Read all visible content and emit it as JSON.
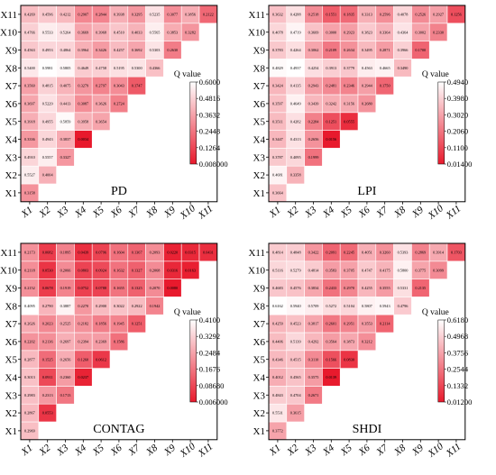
{
  "legend_title": "Q value",
  "axis_labels": [
    "X1",
    "X2",
    "X3",
    "X4",
    "X5",
    "X6",
    "X7",
    "X8",
    "X9",
    "X10",
    "X11"
  ],
  "colors": {
    "low": "#ffffff",
    "high": "#e8192c",
    "border": "#000000"
  },
  "chart_data": [
    {
      "type": "heatmap",
      "title": "PD",
      "layout": "lower-triangular",
      "vmin": 0.008,
      "vmax": 0.6,
      "colorbar_ticks": [
        "0.6000",
        "0.4816",
        "0.3632",
        "0.2448",
        "0.1264",
        "0.008000"
      ],
      "rows": [
        [
          "0.3158"
        ],
        [
          "0.5527",
          "0.4004"
        ],
        [
          "0.4910",
          "0.5557",
          "0.3327"
        ],
        [
          "0.3336",
          "0.4943",
          "0.3837",
          "0.0034"
        ],
        [
          "0.3918",
          "0.4955",
          "0.5859",
          "0.3958",
          "0.3654"
        ],
        [
          "0.3697",
          "0.5229",
          "0.4413",
          "0.3087",
          "0.3626",
          "0.2724"
        ],
        [
          "0.3560",
          "0.4815",
          "0.4075",
          "0.3279",
          "0.2797",
          "0.3043",
          "0.1747"
        ],
        [
          "0.5400",
          "0.5981",
          "0.5805",
          "0.4649",
          "0.4758",
          "0.5195",
          "0.5300",
          "0.4366"
        ],
        [
          "0.4563",
          "0.4953",
          "0.4864",
          "0.3964",
          "0.3426",
          "0.4257",
          "0.3692",
          "0.5303",
          "0.2630"
        ],
        [
          "0.4766",
          "0.5533",
          "0.5264",
          "0.3669",
          "0.3968",
          "0.4510",
          "0.4033",
          "0.5565",
          "0.3853",
          "0.3282"
        ],
        [
          "0.4269",
          "0.4596",
          "0.4212",
          "0.2907",
          "0.2844",
          "0.3938",
          "0.3295",
          "0.5235",
          "0.3077",
          "0.3856",
          "0.2122"
        ]
      ]
    },
    {
      "type": "heatmap",
      "title": "LPI",
      "layout": "lower-triangular",
      "vmin": 0.014,
      "vmax": 0.494,
      "colorbar_ticks": [
        "0.4940",
        "0.3980",
        "0.3020",
        "0.2060",
        "0.1100",
        "0.01400"
      ],
      "rows": [
        [
          "0.3664"
        ],
        [
          "0.4681",
          "0.3358"
        ],
        [
          "0.3787",
          "0.4095",
          "0.1999"
        ],
        [
          "0.3447",
          "0.4313",
          "0.2656",
          "0.0156"
        ],
        [
          "0.3511",
          "0.4282",
          "0.2284",
          "0.1251",
          "0.0555"
        ],
        [
          "0.3597",
          "0.4649",
          "0.3439",
          "0.3242",
          "0.3156",
          "0.2680"
        ],
        [
          "0.3424",
          "0.4135",
          "0.2943",
          "0.2481",
          "0.2346",
          "0.2944",
          "0.1750"
        ],
        [
          "0.4829",
          "0.4937",
          "0.4254",
          "0.3913",
          "0.3779",
          "0.4563",
          "0.4665",
          "0.3490"
        ],
        [
          "0.3783",
          "0.4264",
          "0.3062",
          "0.2109",
          "0.2634",
          "0.3495",
          "0.2871",
          "0.3966",
          "0.1700"
        ],
        [
          "0.4078",
          "0.4719",
          "0.3669",
          "0.3000",
          "0.2923",
          "0.3823",
          "0.3364",
          "0.4364",
          "0.3002",
          "0.2330"
        ],
        [
          "0.3632",
          "0.4288",
          "0.2518",
          "0.1551",
          "0.1835",
          "0.3313",
          "0.2596",
          "0.4078",
          "0.2526",
          "0.2927",
          "0.1256"
        ]
      ]
    },
    {
      "type": "heatmap",
      "title": "CONTAG",
      "layout": "lower-triangular",
      "vmin": 0.006,
      "vmax": 0.41,
      "colorbar_ticks": [
        "0.4100",
        "0.3292",
        "0.2484",
        "0.1676",
        "0.08680",
        "0.006000"
      ],
      "rows": [
        [
          "0.2969"
        ],
        [
          "0.2867",
          "0.0553"
        ],
        [
          "0.2983",
          "0.2313",
          "0.1713"
        ],
        [
          "0.3013",
          "0.0911",
          "0.2360",
          "0.0237"
        ],
        [
          "0.2877",
          "0.1525",
          "0.2656",
          "0.1260",
          "0.0612"
        ],
        [
          "0.2202",
          "0.2136",
          "0.2697",
          "0.2394",
          "0.2369",
          "0.1586"
        ],
        [
          "0.2626",
          "0.2023",
          "0.2525",
          "0.2182",
          "0.1856",
          "0.1945",
          "0.1251"
        ],
        [
          "0.4095",
          "0.2790",
          "0.3887",
          "0.2270",
          "0.2900",
          "0.3022",
          "0.2922",
          "0.1942"
        ],
        [
          "0.2152",
          "0.0678",
          "0.1919",
          "0.0752",
          "0.0788",
          "0.1655",
          "0.1325",
          "0.2070",
          "0.0080"
        ],
        [
          "0.2118",
          "0.0530",
          "0.2066",
          "0.0803",
          "0.0924",
          "0.1632",
          "0.1327",
          "0.2068",
          "0.0316",
          "0.0163"
        ],
        [
          "0.2173",
          "0.0682",
          "0.1895",
          "0.0439",
          "0.0796",
          "0.1604",
          "0.1367",
          "0.2093",
          "0.0220",
          "0.0315",
          "0.0431"
        ]
      ]
    },
    {
      "type": "heatmap",
      "title": "SHDI",
      "layout": "lower-triangular",
      "vmin": 0.012,
      "vmax": 0.618,
      "colorbar_ticks": [
        "0.6180",
        "0.4968",
        "0.3756",
        "0.2544",
        "0.1332",
        "0.01200"
      ],
      "rows": [
        [
          "0.3772"
        ],
        [
          "0.5531",
          "0.3615"
        ],
        [
          "0.4843",
          "0.4704",
          "0.2671"
        ],
        [
          "0.4012",
          "0.4565",
          "0.3575",
          "0.0139"
        ],
        [
          "0.4346",
          "0.4515",
          "0.3110",
          "0.1566",
          "0.0830"
        ],
        [
          "0.4406",
          "0.5139",
          "0.4292",
          "0.3564",
          "0.3873",
          "0.3212"
        ],
        [
          "0.4259",
          "0.4523",
          "0.3817",
          "0.2601",
          "0.2951",
          "0.3553",
          "0.2114"
        ],
        [
          "0.6162",
          "0.5940",
          "0.5709",
          "0.5272",
          "0.5104",
          "0.5807",
          "0.5943",
          "0.4796"
        ],
        [
          "0.4683",
          "0.4576",
          "0.3834",
          "0.2433",
          "0.2970",
          "0.4255",
          "0.3555",
          "0.5331",
          "0.2135"
        ],
        [
          "0.5116",
          "0.5279",
          "0.4814",
          "0.3583",
          "0.3705",
          "0.4747",
          "0.4175",
          "0.5800",
          "0.3775",
          "0.3099"
        ],
        [
          "0.4814",
          "0.4848",
          "0.3422",
          "0.2091",
          "0.2245",
          "0.4051",
          "0.3260",
          "0.5393",
          "0.2869",
          "0.3914",
          "0.1703"
        ]
      ]
    }
  ]
}
